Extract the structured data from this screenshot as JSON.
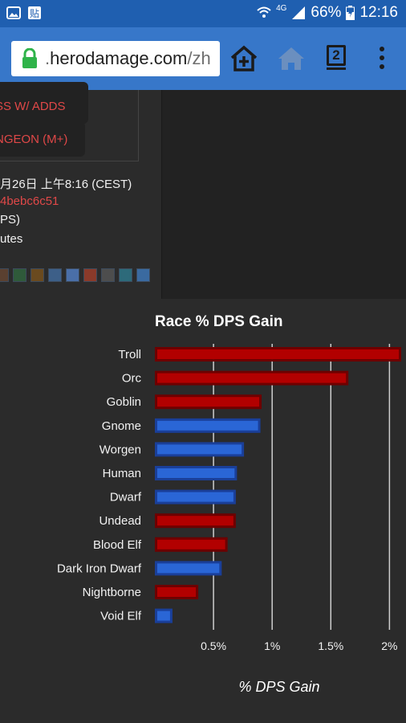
{
  "status_bar": {
    "left_icons": [
      "image-icon",
      "paste-icon"
    ],
    "network": "4G",
    "battery": "66%",
    "time": "12:16"
  },
  "browser": {
    "url_prefix": ".",
    "url_domain": "herodamage.com",
    "url_path": "/zh",
    "tab_count": "2"
  },
  "page": {
    "button_1": "SS W/ ADDS",
    "button_2": "NGEON (M+)",
    "date_line": "月26日 上午8:16 (CEST)",
    "hash": "4bebc6c51",
    "line_dps": "PS)",
    "line_minutes": "utes"
  },
  "chart_data": {
    "type": "bar",
    "orientation": "horizontal",
    "title": "Race % DPS Gain",
    "xlabel": "% DPS Gain",
    "ylabel": "",
    "categories": [
      "Troll",
      "Orc",
      "Goblin",
      "Gnome",
      "Worgen",
      "Human",
      "Dwarf",
      "Undead",
      "Blood Elf",
      "Dark Iron Dwarf",
      "Nightborne",
      "Void Elf"
    ],
    "values": [
      2.1,
      1.65,
      0.91,
      0.9,
      0.76,
      0.7,
      0.69,
      0.69,
      0.62,
      0.57,
      0.37,
      0.15
    ],
    "faction": [
      "horde",
      "horde",
      "horde",
      "alliance",
      "alliance",
      "alliance",
      "alliance",
      "horde",
      "horde",
      "alliance",
      "horde",
      "alliance"
    ],
    "colors": {
      "horde": "#b20000",
      "horde_border": "#6e0000",
      "alliance": "#2a66d6",
      "alliance_border": "#1a3f99"
    },
    "xticks": [
      "0.5%",
      "1%",
      "1.5%",
      "2%"
    ],
    "xtick_values": [
      0.5,
      1,
      1.5,
      2
    ],
    "xlim": [
      0,
      2.1
    ],
    "grid": true
  }
}
